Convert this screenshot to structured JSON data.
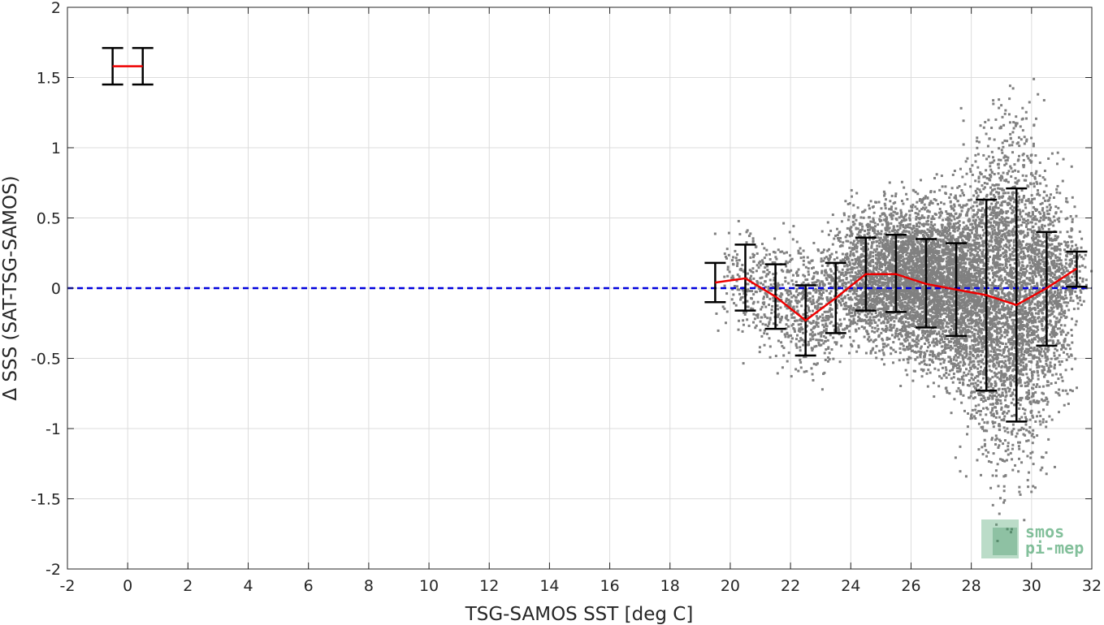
{
  "chart_data": {
    "type": "scatter",
    "title": "",
    "xlabel": "TSG-SAMOS SST [deg C]",
    "ylabel": "Δ SSS (SAT-TSG-SAMOS)",
    "xlim": [
      -2,
      32
    ],
    "ylim": [
      -2,
      2
    ],
    "xticks": [
      -2,
      0,
      2,
      4,
      6,
      8,
      10,
      12,
      14,
      16,
      18,
      20,
      22,
      24,
      26,
      28,
      30,
      32
    ],
    "yticks": [
      -2,
      -1.5,
      -1,
      -0.5,
      0,
      0.5,
      1,
      1.5,
      2
    ],
    "xtick_labels": [
      "-2",
      "0",
      "2",
      "4",
      "6",
      "8",
      "10",
      "12",
      "14",
      "16",
      "18",
      "20",
      "22",
      "24",
      "26",
      "28",
      "30",
      "32"
    ],
    "ytick_labels": [
      "-2",
      "-1.5",
      "-1",
      "-0.5",
      "0",
      "0.5",
      "1",
      "1.5",
      "2"
    ],
    "grid": true,
    "reference_line": {
      "y": 0,
      "style": "dashed",
      "color": "#0000dd"
    },
    "mean_line": {
      "color": "#ee0000",
      "x": [
        19.5,
        20.5,
        21.5,
        22.5,
        23.5,
        24.5,
        25.5,
        26.5,
        27.5,
        28.5,
        29.5,
        30.5,
        31.5
      ],
      "y": [
        0.04,
        0.07,
        -0.06,
        -0.23,
        -0.07,
        0.1,
        0.1,
        0.03,
        -0.01,
        -0.05,
        -0.12,
        0.0,
        0.14
      ]
    },
    "error_bars": {
      "color": "#000000",
      "bins": [
        {
          "x": -0.5,
          "lower": 1.45,
          "upper": 1.71
        },
        {
          "x": 0.5,
          "lower": 1.45,
          "upper": 1.71
        },
        {
          "x": 19.5,
          "lower": -0.1,
          "upper": 0.18
        },
        {
          "x": 20.5,
          "lower": -0.16,
          "upper": 0.31
        },
        {
          "x": 21.5,
          "lower": -0.29,
          "upper": 0.17
        },
        {
          "x": 22.5,
          "lower": -0.48,
          "upper": 0.02
        },
        {
          "x": 23.5,
          "lower": -0.32,
          "upper": 0.18
        },
        {
          "x": 24.5,
          "lower": -0.16,
          "upper": 0.36
        },
        {
          "x": 25.5,
          "lower": -0.17,
          "upper": 0.38
        },
        {
          "x": 26.5,
          "lower": -0.28,
          "upper": 0.35
        },
        {
          "x": 27.5,
          "lower": -0.34,
          "upper": 0.32
        },
        {
          "x": 28.5,
          "lower": -0.73,
          "upper": 0.63
        },
        {
          "x": 29.5,
          "lower": -0.95,
          "upper": 0.71
        },
        {
          "x": 30.5,
          "lower": -0.41,
          "upper": 0.4
        },
        {
          "x": 31.5,
          "lower": 0.01,
          "upper": 0.26
        }
      ]
    },
    "mean_segment_0": {
      "x": [
        -0.5,
        0.5
      ],
      "y": [
        1.58,
        1.58
      ]
    },
    "scatter_color": "#808080",
    "scatter_clusters": [
      {
        "x": 20.6,
        "y": 0.05,
        "sx": 0.5,
        "sy": 0.18,
        "n": 160
      },
      {
        "x": 21.6,
        "y": -0.05,
        "sx": 0.55,
        "sy": 0.2,
        "n": 220
      },
      {
        "x": 22.5,
        "y": -0.2,
        "sx": 0.5,
        "sy": 0.2,
        "n": 260
      },
      {
        "x": 23.5,
        "y": -0.05,
        "sx": 0.5,
        "sy": 0.2,
        "n": 300
      },
      {
        "x": 24.5,
        "y": 0.1,
        "sx": 0.5,
        "sy": 0.22,
        "n": 700
      },
      {
        "x": 25.5,
        "y": 0.08,
        "sx": 0.5,
        "sy": 0.24,
        "n": 1100
      },
      {
        "x": 26.5,
        "y": 0.03,
        "sx": 0.5,
        "sy": 0.28,
        "n": 1300
      },
      {
        "x": 27.5,
        "y": 0.0,
        "sx": 0.5,
        "sy": 0.3,
        "n": 1300
      },
      {
        "x": 28.5,
        "y": -0.05,
        "sx": 0.5,
        "sy": 0.5,
        "n": 1400
      },
      {
        "x": 29.5,
        "y": -0.1,
        "sx": 0.5,
        "sy": 0.6,
        "n": 1400
      },
      {
        "x": 30.5,
        "y": 0.0,
        "sx": 0.45,
        "sy": 0.35,
        "n": 900
      },
      {
        "x": 31.3,
        "y": 0.12,
        "sx": 0.3,
        "sy": 0.12,
        "n": 120
      }
    ],
    "logo": {
      "line1": "smos",
      "line2": "pi-mep",
      "color": "#5aab7a"
    }
  }
}
